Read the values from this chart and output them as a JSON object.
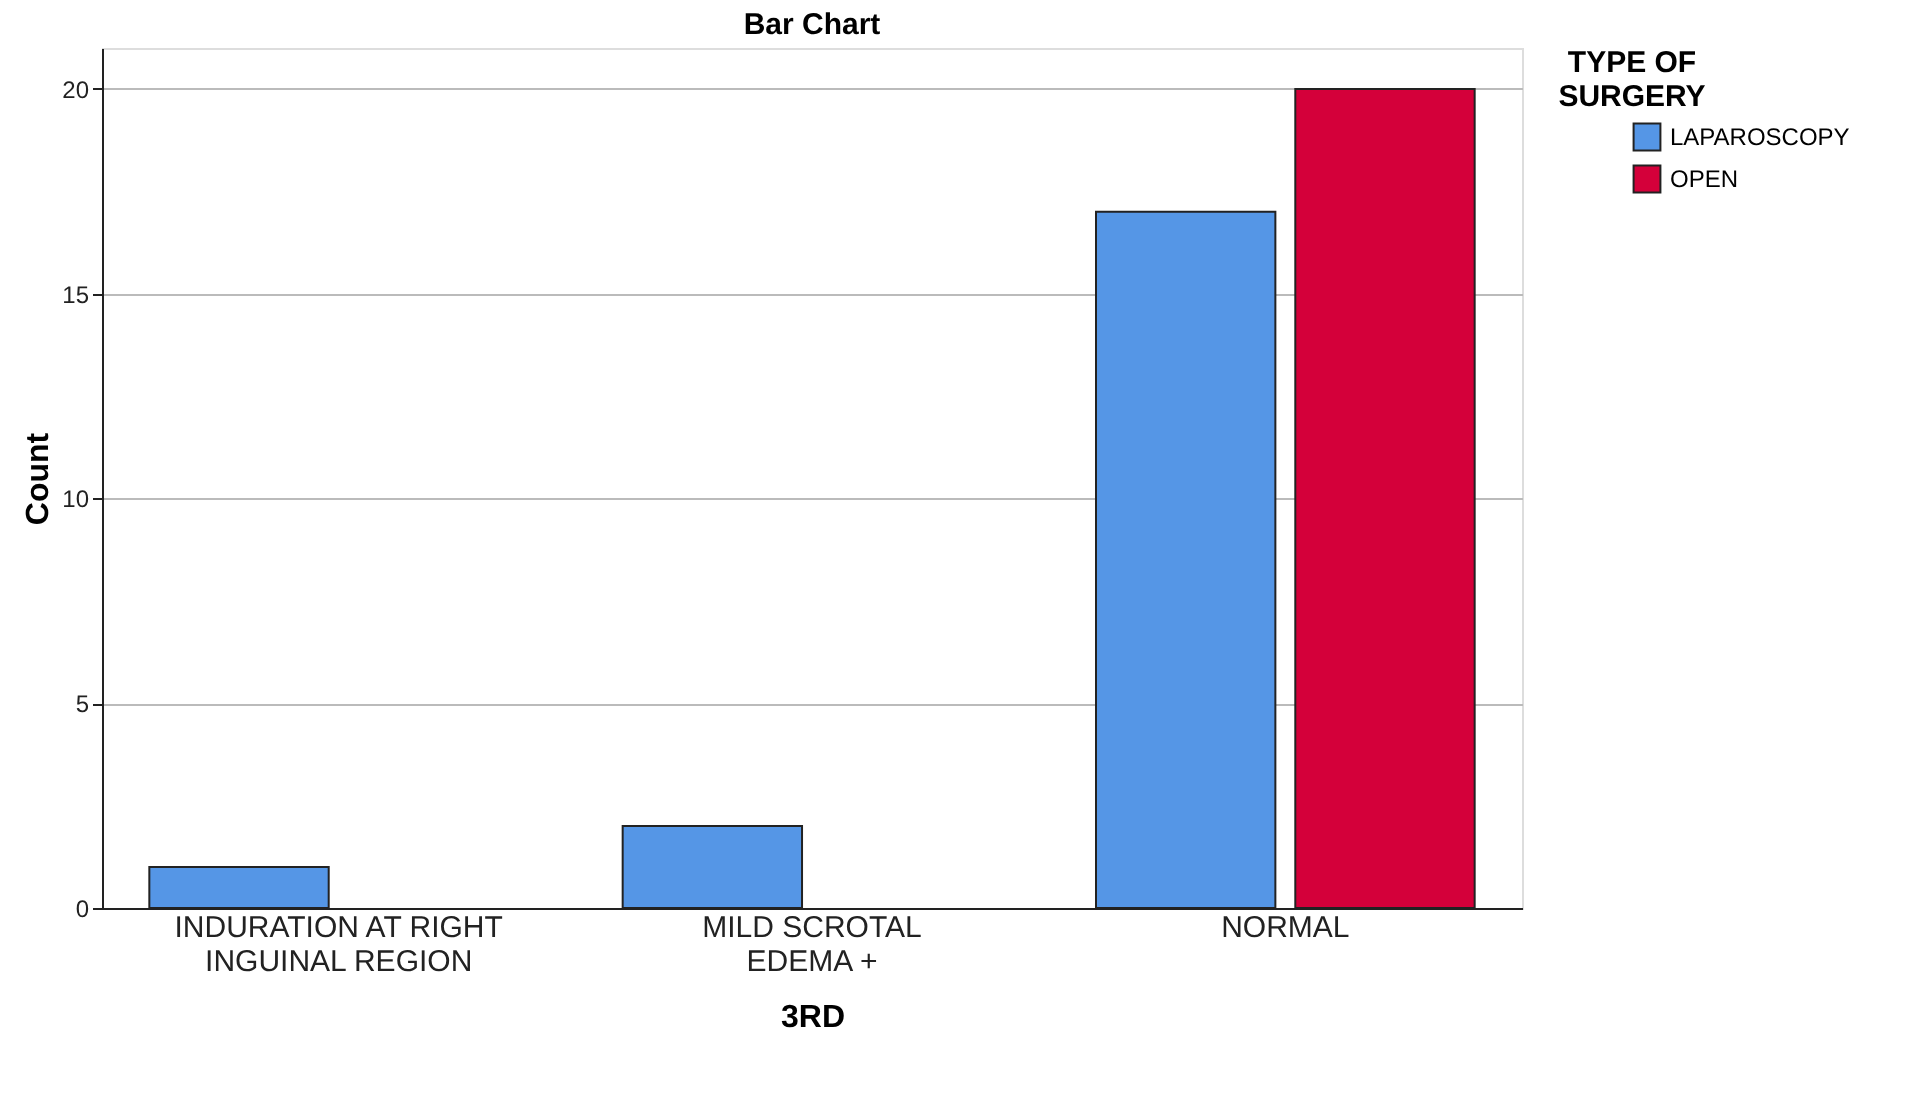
{
  "chart_data": {
    "type": "bar",
    "title": "Bar Chart",
    "xlabel": "3RD",
    "ylabel": "Count",
    "legend_title": "TYPE OF SURGERY",
    "categories": [
      "INDURATION AT RIGHT INGUINAL REGION",
      "MILD SCROTAL EDEMA +",
      "NORMAL"
    ],
    "series": [
      {
        "name": "LAPAROSCOPY",
        "color": "#5596e6",
        "values": [
          1,
          2,
          17
        ]
      },
      {
        "name": "OPEN",
        "color": "#d4003a",
        "values": [
          null,
          null,
          20
        ]
      }
    ],
    "ylim": [
      0,
      21
    ],
    "yticks": [
      0,
      5,
      10,
      15,
      20
    ],
    "grid": "y",
    "legend": "top right"
  }
}
